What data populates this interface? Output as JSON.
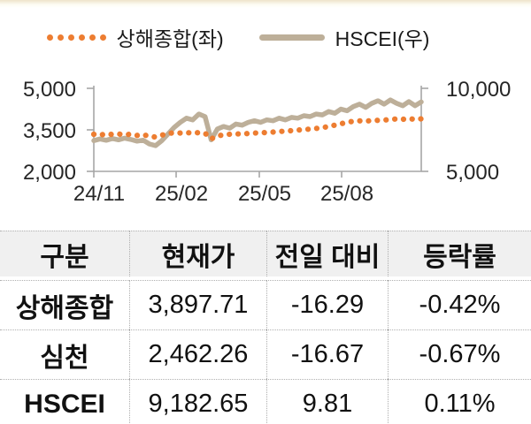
{
  "legend": [
    {
      "label": "상해종합(좌)",
      "color": "#ED7D31",
      "style": "dotted"
    },
    {
      "label": "HSCEI(우)",
      "color": "#BDAF99",
      "style": "solid"
    }
  ],
  "chart_data": {
    "type": "line",
    "x_tick_labels": [
      "24/11",
      "25/02",
      "25/05",
      "25/08"
    ],
    "left_axis": {
      "label_for": "상해종합",
      "tick_labels": [
        "5,000",
        "3,500",
        "2,000"
      ],
      "tick_values": [
        5000,
        3500,
        2000
      ],
      "min": 2000,
      "max": 5000
    },
    "right_axis": {
      "label_for": "HSCEI",
      "tick_labels": [
        "10,000",
        "5,000"
      ],
      "tick_values": [
        10000,
        5000
      ],
      "min": 5000,
      "max": 10000
    },
    "grid": false,
    "legend_position": "top",
    "series": [
      {
        "name": "상해종합(좌)",
        "axis": "left",
        "style": "dotted",
        "color": "#ED7D31",
        "values": [
          3340,
          3310,
          3360,
          3330,
          3350,
          3320,
          3345,
          3300,
          3330,
          3260,
          3240,
          3310,
          3370,
          3395,
          3385,
          3405,
          3380,
          3400,
          3380,
          3170,
          3280,
          3320,
          3340,
          3355,
          3350,
          3370,
          3385,
          3395,
          3405,
          3420,
          3440,
          3455,
          3470,
          3490,
          3510,
          3530,
          3550,
          3580,
          3620,
          3670,
          3720,
          3770,
          3810,
          3825,
          3815,
          3835,
          3845,
          3855,
          3875,
          3895,
          3880,
          3915,
          3870,
          3898
        ]
      },
      {
        "name": "HSCEI(우)",
        "axis": "right",
        "style": "solid",
        "color": "#BDAF99",
        "values": [
          6850,
          6950,
          6870,
          6980,
          6900,
          7000,
          6920,
          6820,
          6880,
          6650,
          6550,
          6850,
          7250,
          7650,
          7950,
          8200,
          8100,
          8450,
          8300,
          6900,
          7550,
          7700,
          7600,
          7850,
          7780,
          7950,
          8050,
          7950,
          8100,
          8050,
          8200,
          8100,
          8250,
          8200,
          8350,
          8300,
          8450,
          8400,
          8600,
          8500,
          8750,
          8650,
          8900,
          9050,
          8850,
          9100,
          9250,
          9050,
          9300,
          9100,
          8950,
          9200,
          8950,
          9183
        ]
      }
    ]
  },
  "table": {
    "headers": [
      "구분",
      "현재가",
      "전일 대비",
      "등락률"
    ],
    "rows": [
      {
        "label": "상해종합",
        "price": "3,897.71",
        "change": "-16.29",
        "pct": "-0.42%"
      },
      {
        "label": "심천",
        "price": "2,462.26",
        "change": "-16.67",
        "pct": "-0.67%"
      },
      {
        "label": "HSCEI",
        "price": "9,182.65",
        "change": "9.81",
        "pct": "0.11%"
      }
    ]
  },
  "colors": {
    "shanghai_orange": "#ED7D31",
    "hscei_tan": "#BDAF99",
    "axis_gray": "#A6A6A6",
    "axis_text": "#262626",
    "header_bg": "#F0F0F0",
    "divider_cream": "#F2E9D6"
  }
}
